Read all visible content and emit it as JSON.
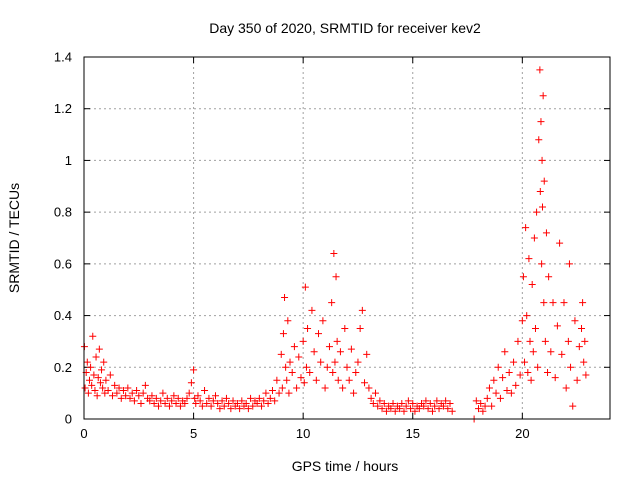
{
  "chart_data": {
    "type": "scatter",
    "title": "Day 350 of 2020, SRMTID for receiver kev2",
    "xlabel": "GPS time / hours",
    "ylabel": "SRMTID / TECUs",
    "xlim": [
      0,
      24
    ],
    "ylim": [
      0,
      1.4
    ],
    "xticks": [
      0,
      5,
      10,
      15,
      20
    ],
    "yticks": [
      0,
      0.2,
      0.4,
      0.6,
      0.8,
      1,
      1.2,
      1.4
    ],
    "xtick_labels": [
      "0",
      "5",
      "10",
      "15",
      "20"
    ],
    "ytick_labels": [
      "0",
      "0.2",
      "0.4",
      "0.6",
      "0.8",
      "1",
      "1.2",
      "1.4"
    ],
    "grid": true,
    "marker": "+",
    "color": "#ff0000",
    "series": [
      {
        "name": "SRMTID",
        "points": [
          [
            0.02,
            0.28
          ],
          [
            0.05,
            0.12
          ],
          [
            0.1,
            0.18
          ],
          [
            0.15,
            0.22
          ],
          [
            0.2,
            0.1
          ],
          [
            0.25,
            0.15
          ],
          [
            0.3,
            0.2
          ],
          [
            0.35,
            0.13
          ],
          [
            0.4,
            0.32
          ],
          [
            0.45,
            0.17
          ],
          [
            0.5,
            0.11
          ],
          [
            0.55,
            0.24
          ],
          [
            0.6,
            0.09
          ],
          [
            0.65,
            0.16
          ],
          [
            0.7,
            0.27
          ],
          [
            0.75,
            0.14
          ],
          [
            0.8,
            0.19
          ],
          [
            0.85,
            0.12
          ],
          [
            0.9,
            0.22
          ],
          [
            0.95,
            0.1
          ],
          [
            1.0,
            0.15
          ],
          [
            1.1,
            0.11
          ],
          [
            1.2,
            0.17
          ],
          [
            1.3,
            0.09
          ],
          [
            1.4,
            0.13
          ],
          [
            1.5,
            0.1
          ],
          [
            1.6,
            0.12
          ],
          [
            1.7,
            0.08
          ],
          [
            1.8,
            0.11
          ],
          [
            1.9,
            0.09
          ],
          [
            2.0,
            0.12
          ],
          [
            2.1,
            0.08
          ],
          [
            2.2,
            0.1
          ],
          [
            2.3,
            0.07
          ],
          [
            2.4,
            0.11
          ],
          [
            2.5,
            0.09
          ],
          [
            2.6,
            0.06
          ],
          [
            2.7,
            0.1
          ],
          [
            2.8,
            0.13
          ],
          [
            2.9,
            0.08
          ],
          [
            3.0,
            0.07
          ],
          [
            3.1,
            0.09
          ],
          [
            3.2,
            0.06
          ],
          [
            3.3,
            0.08
          ],
          [
            3.4,
            0.05
          ],
          [
            3.5,
            0.07
          ],
          [
            3.6,
            0.1
          ],
          [
            3.7,
            0.06
          ],
          [
            3.8,
            0.08
          ],
          [
            3.9,
            0.05
          ],
          [
            4.0,
            0.07
          ],
          [
            4.1,
            0.09
          ],
          [
            4.2,
            0.06
          ],
          [
            4.3,
            0.08
          ],
          [
            4.4,
            0.05
          ],
          [
            4.5,
            0.07
          ],
          [
            4.6,
            0.06
          ],
          [
            4.7,
            0.08
          ],
          [
            4.8,
            0.1
          ],
          [
            4.9,
            0.14
          ],
          [
            5.0,
            0.19
          ],
          [
            5.05,
            0.08
          ],
          [
            5.1,
            0.06
          ],
          [
            5.2,
            0.09
          ],
          [
            5.3,
            0.07
          ],
          [
            5.4,
            0.05
          ],
          [
            5.5,
            0.11
          ],
          [
            5.6,
            0.06
          ],
          [
            5.7,
            0.08
          ],
          [
            5.8,
            0.05
          ],
          [
            5.9,
            0.07
          ],
          [
            6.0,
            0.09
          ],
          [
            6.1,
            0.06
          ],
          [
            6.2,
            0.04
          ],
          [
            6.3,
            0.07
          ],
          [
            6.4,
            0.05
          ],
          [
            6.5,
            0.08
          ],
          [
            6.6,
            0.06
          ],
          [
            6.7,
            0.04
          ],
          [
            6.8,
            0.07
          ],
          [
            6.9,
            0.05
          ],
          [
            7.0,
            0.06
          ],
          [
            7.1,
            0.04
          ],
          [
            7.2,
            0.07
          ],
          [
            7.3,
            0.05
          ],
          [
            7.4,
            0.06
          ],
          [
            7.5,
            0.04
          ],
          [
            7.6,
            0.08
          ],
          [
            7.7,
            0.05
          ],
          [
            7.8,
            0.07
          ],
          [
            7.9,
            0.06
          ],
          [
            8.0,
            0.08
          ],
          [
            8.1,
            0.05
          ],
          [
            8.2,
            0.07
          ],
          [
            8.3,
            0.1
          ],
          [
            8.4,
            0.06
          ],
          [
            8.5,
            0.08
          ],
          [
            8.6,
            0.11
          ],
          [
            8.7,
            0.07
          ],
          [
            8.8,
            0.15
          ],
          [
            8.9,
            0.1
          ],
          [
            9.0,
            0.25
          ],
          [
            9.05,
            0.12
          ],
          [
            9.1,
            0.33
          ],
          [
            9.15,
            0.47
          ],
          [
            9.2,
            0.2
          ],
          [
            9.25,
            0.15
          ],
          [
            9.3,
            0.38
          ],
          [
            9.35,
            0.1
          ],
          [
            9.4,
            0.22
          ],
          [
            9.5,
            0.18
          ],
          [
            9.6,
            0.28
          ],
          [
            9.7,
            0.12
          ],
          [
            9.8,
            0.24
          ],
          [
            9.9,
            0.16
          ],
          [
            10.0,
            0.3
          ],
          [
            10.05,
            0.14
          ],
          [
            10.1,
            0.51
          ],
          [
            10.15,
            0.2
          ],
          [
            10.2,
            0.35
          ],
          [
            10.3,
            0.18
          ],
          [
            10.4,
            0.42
          ],
          [
            10.5,
            0.26
          ],
          [
            10.6,
            0.15
          ],
          [
            10.7,
            0.33
          ],
          [
            10.8,
            0.22
          ],
          [
            10.9,
            0.38
          ],
          [
            11.0,
            0.12
          ],
          [
            11.1,
            0.2
          ],
          [
            11.2,
            0.28
          ],
          [
            11.3,
            0.45
          ],
          [
            11.35,
            0.18
          ],
          [
            11.4,
            0.64
          ],
          [
            11.45,
            0.22
          ],
          [
            11.5,
            0.55
          ],
          [
            11.55,
            0.3
          ],
          [
            11.6,
            0.15
          ],
          [
            11.7,
            0.26
          ],
          [
            11.8,
            0.12
          ],
          [
            11.9,
            0.35
          ],
          [
            12.0,
            0.2
          ],
          [
            12.1,
            0.15
          ],
          [
            12.2,
            0.27
          ],
          [
            12.3,
            0.1
          ],
          [
            12.4,
            0.18
          ],
          [
            12.5,
            0.22
          ],
          [
            12.6,
            0.35
          ],
          [
            12.7,
            0.42
          ],
          [
            12.8,
            0.14
          ],
          [
            12.9,
            0.25
          ],
          [
            13.0,
            0.12
          ],
          [
            13.1,
            0.08
          ],
          [
            13.2,
            0.06
          ],
          [
            13.3,
            0.1
          ],
          [
            13.4,
            0.05
          ],
          [
            13.5,
            0.07
          ],
          [
            13.6,
            0.04
          ],
          [
            13.7,
            0.06
          ],
          [
            13.8,
            0.03
          ],
          [
            13.9,
            0.05
          ],
          [
            14.0,
            0.04
          ],
          [
            14.1,
            0.06
          ],
          [
            14.2,
            0.03
          ],
          [
            14.3,
            0.05
          ],
          [
            14.4,
            0.04
          ],
          [
            14.5,
            0.06
          ],
          [
            14.6,
            0.03
          ],
          [
            14.7,
            0.05
          ],
          [
            14.8,
            0.07
          ],
          [
            14.9,
            0.04
          ],
          [
            15.0,
            0.06
          ],
          [
            15.1,
            0.03
          ],
          [
            15.2,
            0.05
          ],
          [
            15.3,
            0.04
          ],
          [
            15.4,
            0.06
          ],
          [
            15.5,
            0.05
          ],
          [
            15.6,
            0.07
          ],
          [
            15.7,
            0.04
          ],
          [
            15.8,
            0.06
          ],
          [
            15.9,
            0.03
          ],
          [
            16.0,
            0.05
          ],
          [
            16.1,
            0.07
          ],
          [
            16.2,
            0.04
          ],
          [
            16.3,
            0.06
          ],
          [
            16.4,
            0.05
          ],
          [
            16.5,
            0.07
          ],
          [
            16.6,
            0.04
          ],
          [
            16.7,
            0.06
          ],
          [
            16.8,
            0.03
          ],
          [
            17.8,
            0.0
          ],
          [
            17.9,
            0.07
          ],
          [
            18.0,
            0.04
          ],
          [
            18.1,
            0.06
          ],
          [
            18.2,
            0.03
          ],
          [
            18.3,
            0.05
          ],
          [
            18.4,
            0.08
          ],
          [
            18.5,
            0.12
          ],
          [
            18.6,
            0.05
          ],
          [
            18.7,
            0.15
          ],
          [
            18.8,
            0.1
          ],
          [
            18.9,
            0.2
          ],
          [
            19.0,
            0.08
          ],
          [
            19.1,
            0.16
          ],
          [
            19.2,
            0.26
          ],
          [
            19.3,
            0.11
          ],
          [
            19.4,
            0.18
          ],
          [
            19.5,
            0.1
          ],
          [
            19.6,
            0.22
          ],
          [
            19.7,
            0.13
          ],
          [
            19.8,
            0.3
          ],
          [
            19.9,
            0.17
          ],
          [
            20.0,
            0.38
          ],
          [
            20.05,
            0.55
          ],
          [
            20.1,
            0.22
          ],
          [
            20.15,
            0.74
          ],
          [
            20.2,
            0.4
          ],
          [
            20.25,
            0.18
          ],
          [
            20.3,
            0.62
          ],
          [
            20.35,
            0.3
          ],
          [
            20.4,
            0.15
          ],
          [
            20.45,
            0.52
          ],
          [
            20.5,
            0.26
          ],
          [
            20.55,
            0.7
          ],
          [
            20.6,
            0.35
          ],
          [
            20.65,
            0.8
          ],
          [
            20.7,
            0.2
          ],
          [
            20.75,
            1.08
          ],
          [
            20.8,
            1.35
          ],
          [
            20.82,
            0.88
          ],
          [
            20.85,
            1.15
          ],
          [
            20.88,
            0.6
          ],
          [
            20.9,
            1.0
          ],
          [
            20.92,
            0.82
          ],
          [
            20.95,
            1.25
          ],
          [
            20.98,
            0.45
          ],
          [
            21.0,
            0.92
          ],
          [
            21.05,
            0.3
          ],
          [
            21.1,
            0.72
          ],
          [
            21.15,
            0.18
          ],
          [
            21.2,
            0.55
          ],
          [
            21.3,
            0.26
          ],
          [
            21.4,
            0.45
          ],
          [
            21.5,
            0.16
          ],
          [
            21.6,
            0.36
          ],
          [
            21.7,
            0.68
          ],
          [
            21.8,
            0.25
          ],
          [
            21.9,
            0.45
          ],
          [
            22.0,
            0.12
          ],
          [
            22.1,
            0.3
          ],
          [
            22.15,
            0.6
          ],
          [
            22.2,
            0.2
          ],
          [
            22.3,
            0.05
          ],
          [
            22.4,
            0.38
          ],
          [
            22.5,
            0.15
          ],
          [
            22.6,
            0.28
          ],
          [
            22.7,
            0.35
          ],
          [
            22.75,
            0.45
          ],
          [
            22.8,
            0.22
          ],
          [
            22.85,
            0.3
          ],
          [
            22.9,
            0.17
          ]
        ]
      }
    ]
  }
}
